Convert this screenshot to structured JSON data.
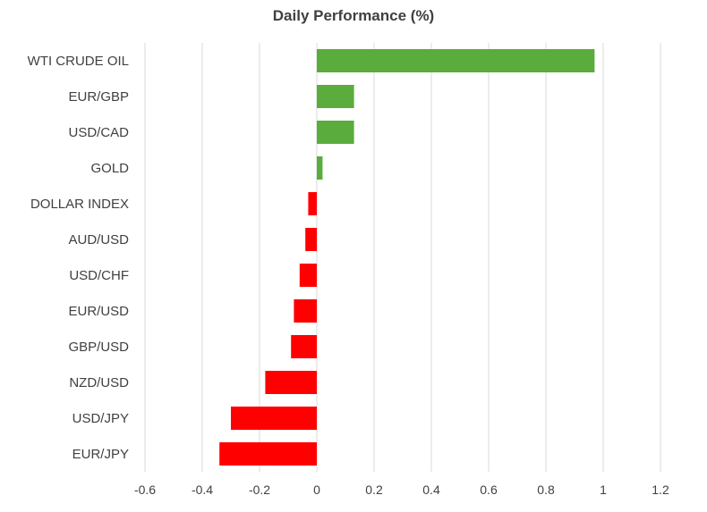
{
  "chart_data": {
    "type": "bar",
    "orientation": "horizontal",
    "title": "Daily Performance (%)",
    "categories": [
      "WTI CRUDE OIL",
      "EUR/GBP",
      "USD/CAD",
      "GOLD",
      "DOLLAR INDEX",
      "AUD/USD",
      "USD/CHF",
      "EUR/USD",
      "GBP/USD",
      "NZD/USD",
      "USD/JPY",
      "EUR/JPY"
    ],
    "values": [
      0.97,
      0.13,
      0.13,
      0.02,
      -0.03,
      -0.04,
      -0.06,
      -0.08,
      -0.09,
      -0.18,
      -0.3,
      -0.34
    ],
    "xlim": [
      -0.6,
      1.2
    ],
    "xticks": [
      "-0.6",
      "-0.4",
      "-0.2",
      "0",
      "0.2",
      "0.4",
      "0.6",
      "0.8",
      "1",
      "1.2"
    ],
    "grid": "vertical",
    "colors": {
      "positive": "#5aac3c",
      "negative": "#ff0000"
    }
  }
}
